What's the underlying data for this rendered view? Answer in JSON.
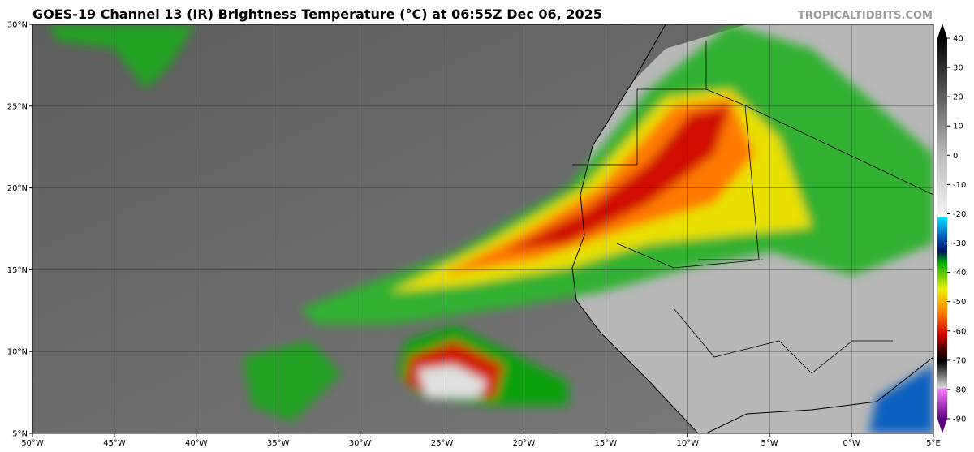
{
  "header": {
    "title": "GOES-19 Channel 13 (IR) Brightness Temperature (°C) at 06:55Z Dec 06, 2025",
    "source": "TROPICALTIDBITS.COM"
  },
  "map": {
    "lat_ticks": [
      "30°N",
      "25°N",
      "20°N",
      "15°N",
      "10°N",
      "5°N"
    ],
    "lon_ticks": [
      "50°W",
      "45°W",
      "40°W",
      "35°W",
      "30°W",
      "25°W",
      "20°W",
      "15°W",
      "10°W",
      "5°W",
      "0°W",
      "5°E"
    ]
  },
  "colorbar": {
    "ticks": [
      40,
      30,
      20,
      10,
      0,
      -10,
      -20,
      -30,
      -40,
      -50,
      -60,
      -70,
      -80,
      -90
    ]
  }
}
